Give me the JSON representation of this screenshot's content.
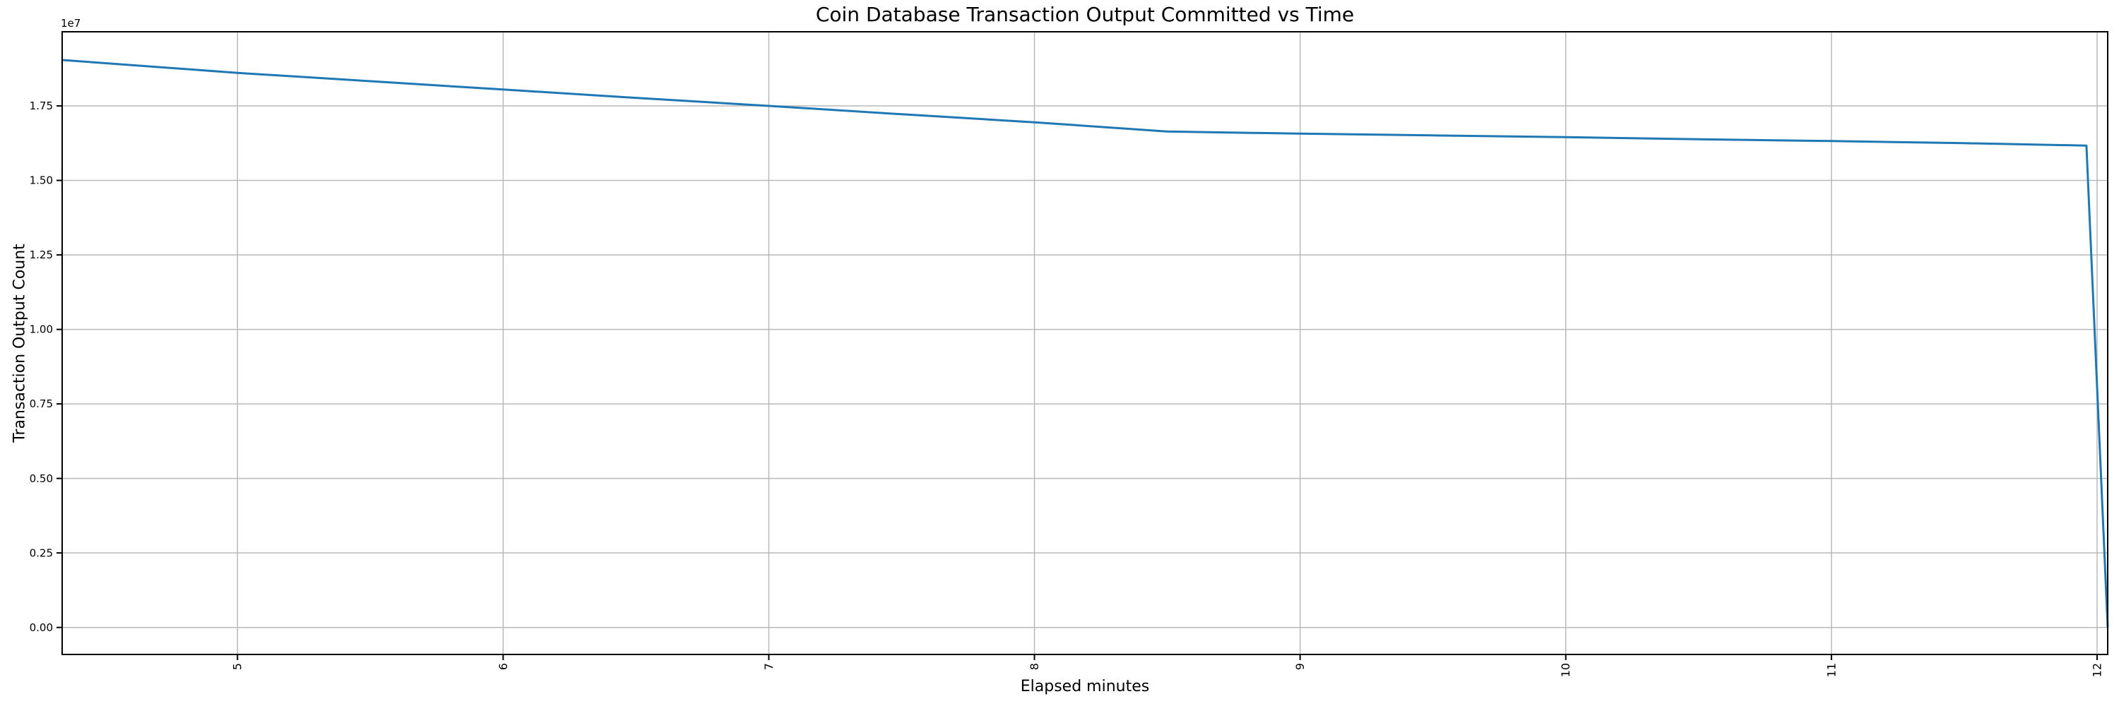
{
  "page": {
    "background_color": "#ffffff"
  },
  "chart_data": {
    "type": "line",
    "title": "Coin Database Transaction Output Committed vs Time",
    "xlabel": "Elapsed minutes",
    "ylabel": "Transaction Output Count",
    "offset_text": "1e7",
    "grid": true,
    "legend": "none",
    "line_color": "#1f77b4",
    "grid_color": "#b9b9b9",
    "spine_color": "#000000",
    "xlim": [
      4.34,
      12.04
    ],
    "ylim": [
      -907000,
      19988000
    ],
    "x_ticks": [
      5,
      6,
      7,
      8,
      9,
      10,
      11,
      12
    ],
    "x_tick_labels": [
      "5",
      "6",
      "7",
      "8",
      "9",
      "10",
      "11",
      "12"
    ],
    "y_ticks": [
      0,
      2500000,
      5000000,
      7500000,
      10000000,
      12500000,
      15000000,
      17500000
    ],
    "y_tick_labels": [
      "0.00",
      "0.25",
      "0.50",
      "0.75",
      "1.00",
      "1.25",
      "1.50",
      "1.75"
    ],
    "series": [
      {
        "name": "transaction_output_count",
        "x": [
          4.34,
          5.0,
          5.5,
          6.0,
          6.5,
          7.0,
          7.5,
          8.0,
          8.5,
          9.0,
          9.5,
          10.0,
          10.5,
          11.0,
          11.5,
          11.96,
          12.04
        ],
        "y": [
          19040000,
          18610000,
          18330000,
          18050000,
          17770000,
          17500000,
          17220000,
          16950000,
          16640000,
          16570000,
          16510000,
          16450000,
          16380000,
          16320000,
          16250000,
          16170000,
          0
        ]
      }
    ]
  }
}
